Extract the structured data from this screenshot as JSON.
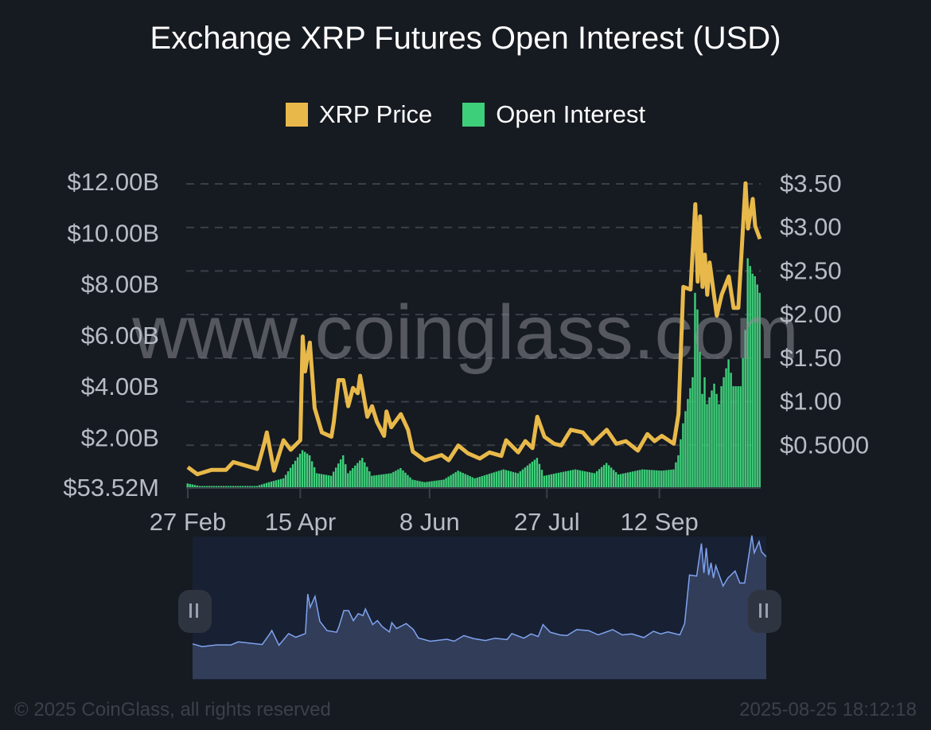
{
  "chart_data": {
    "type": "bar+line",
    "title": "Exchange XRP Futures Open Interest (USD)",
    "legend_position": "top",
    "grid": "dashed horizontal",
    "colors": {
      "price": "#e8b94a",
      "open_interest": "#3ecf7a",
      "navigator_line": "#7fa3f0",
      "background": "#161a21"
    },
    "x_ticks": [
      "27 Feb",
      "15 Apr",
      "8 Jun",
      "27 Jul",
      "12 Sep"
    ],
    "x_range": [
      "27 Feb",
      "24 Oct"
    ],
    "left_axis": {
      "label": "",
      "ticks": [
        "$12.00B",
        "$10.00B",
        "$8.00B",
        "$6.00B",
        "$4.00B",
        "$2.00B",
        "$53.52M"
      ],
      "range_usd_billions": [
        0.05352,
        12
      ]
    },
    "right_axis": {
      "label": "",
      "ticks": [
        "$3.50",
        "$3.00",
        "$2.50",
        "$2.00",
        "$1.50",
        "$1.00",
        "$0.5000"
      ],
      "range_usd": [
        0,
        3.5
      ]
    },
    "series": [
      {
        "name": "XRP Price",
        "type": "line",
        "axis": "right",
        "unit": "USD",
        "points": [
          [
            "27 Feb",
            0.22
          ],
          [
            "3 Mar",
            0.14
          ],
          [
            "9 Mar",
            0.19
          ],
          [
            "15 Mar",
            0.19
          ],
          [
            "18 Mar",
            0.28
          ],
          [
            "28 Mar",
            0.2
          ],
          [
            "31 Mar",
            0.5
          ],
          [
            "1 Apr",
            0.62
          ],
          [
            "4 Apr",
            0.18
          ],
          [
            "8 Apr",
            0.53
          ],
          [
            "11 Apr",
            0.42
          ],
          [
            "15 Apr",
            0.53
          ],
          [
            "16 Apr",
            1.72
          ],
          [
            "17 Apr",
            1.32
          ],
          [
            "19 Apr",
            1.65
          ],
          [
            "21 Apr",
            0.9
          ],
          [
            "24 Apr",
            0.62
          ],
          [
            "28 Apr",
            0.57
          ],
          [
            "29 Apr",
            0.74
          ],
          [
            "1 May",
            1.22
          ],
          [
            "3 May",
            1.22
          ],
          [
            "5 May",
            0.92
          ],
          [
            "7 May",
            1.13
          ],
          [
            "9 May",
            1.07
          ],
          [
            "10 May",
            1.27
          ],
          [
            "13 May",
            0.8
          ],
          [
            "15 May",
            0.92
          ],
          [
            "17 May",
            0.74
          ],
          [
            "20 May",
            0.58
          ],
          [
            "21 May",
            0.86
          ],
          [
            "23 May",
            0.68
          ],
          [
            "27 May",
            0.83
          ],
          [
            "30 May",
            0.65
          ],
          [
            "1 Jun",
            0.4
          ],
          [
            "6 Jun",
            0.3
          ],
          [
            "13 Jun",
            0.36
          ],
          [
            "16 Jun",
            0.3
          ],
          [
            "20 Jun",
            0.47
          ],
          [
            "24 Jun",
            0.38
          ],
          [
            "29 Jun",
            0.32
          ],
          [
            "3 Jul",
            0.39
          ],
          [
            "8 Jul",
            0.35
          ],
          [
            "10 Jul",
            0.53
          ],
          [
            "15 Jul",
            0.39
          ],
          [
            "18 Jul",
            0.52
          ],
          [
            "21 Jul",
            0.44
          ],
          [
            "23 Jul",
            0.8
          ],
          [
            "26 Jul",
            0.57
          ],
          [
            "30 Jul",
            0.49
          ],
          [
            "2 Aug",
            0.47
          ],
          [
            "6 Aug",
            0.65
          ],
          [
            "11 Aug",
            0.62
          ],
          [
            "15 Aug",
            0.49
          ],
          [
            "21 Aug",
            0.65
          ],
          [
            "25 Aug",
            0.49
          ],
          [
            "29 Aug",
            0.52
          ],
          [
            "3 Sep",
            0.41
          ],
          [
            "7 Sep",
            0.6
          ],
          [
            "10 Sep",
            0.52
          ],
          [
            "13 Sep",
            0.58
          ],
          [
            "18 Sep",
            0.49
          ],
          [
            "20 Sep",
            0.83
          ],
          [
            "22 Sep",
            2.29
          ],
          [
            "25 Sep",
            2.26
          ],
          [
            "27 Sep",
            3.24
          ],
          [
            "28 Sep",
            2.35
          ],
          [
            "29 Sep",
            3.1
          ],
          [
            "30 Sep",
            2.29
          ],
          [
            "1 Oct",
            2.66
          ],
          [
            "2 Oct",
            2.2
          ],
          [
            "3 Oct",
            2.57
          ],
          [
            "6 Oct",
            1.96
          ],
          [
            "8 Oct",
            2.2
          ],
          [
            "11 Oct",
            2.41
          ],
          [
            "13 Oct",
            2.05
          ],
          [
            "15 Oct",
            2.05
          ],
          [
            "18 Oct",
            3.48
          ],
          [
            "19 Oct",
            2.96
          ],
          [
            "21 Oct",
            3.3
          ],
          [
            "22 Oct",
            2.99
          ],
          [
            "24 Oct",
            2.84
          ]
        ]
      },
      {
        "name": "Open Interest",
        "type": "bar",
        "axis": "left",
        "unit": "USD billions",
        "points": [
          [
            "27 Feb",
            0.2
          ],
          [
            "4 Mar",
            0.1
          ],
          [
            "28 Mar",
            0.1
          ],
          [
            "2 Apr",
            0.25
          ],
          [
            "8 Apr",
            0.4
          ],
          [
            "16 Apr",
            1.5
          ],
          [
            "19 Apr",
            1.3
          ],
          [
            "22 Apr",
            0.6
          ],
          [
            "28 Apr",
            0.5
          ],
          [
            "3 May",
            1.3
          ],
          [
            "5 May",
            0.6
          ],
          [
            "9 May",
            1.0
          ],
          [
            "11 May",
            1.2
          ],
          [
            "15 May",
            0.5
          ],
          [
            "23 May",
            0.6
          ],
          [
            "27 May",
            0.8
          ],
          [
            "1 Jun",
            0.35
          ],
          [
            "6 Jun",
            0.25
          ],
          [
            "14 Jun",
            0.35
          ],
          [
            "20 Jun",
            0.7
          ],
          [
            "27 Jun",
            0.4
          ],
          [
            "9 Jul",
            0.75
          ],
          [
            "15 Jul",
            0.6
          ],
          [
            "23 Jul",
            1.2
          ],
          [
            "26 Jul",
            0.5
          ],
          [
            "31 Jul",
            0.6
          ],
          [
            "8 Aug",
            0.75
          ],
          [
            "16 Aug",
            0.6
          ],
          [
            "21 Aug",
            1.0
          ],
          [
            "26 Aug",
            0.55
          ],
          [
            "5 Sep",
            0.75
          ],
          [
            "13 Sep",
            0.7
          ],
          [
            "18 Sep",
            0.75
          ],
          [
            "20 Sep",
            1.3
          ],
          [
            "22 Sep",
            2.55
          ],
          [
            "24 Sep",
            3.5
          ],
          [
            "26 Sep",
            4.35
          ],
          [
            "27 Sep",
            7.65
          ],
          [
            "28 Sep",
            7.0
          ],
          [
            "30 Sep",
            3.7
          ],
          [
            "1 Oct",
            4.35
          ],
          [
            "2 Oct",
            3.3
          ],
          [
            "5 Oct",
            4.1
          ],
          [
            "7 Oct",
            3.3
          ],
          [
            "8 Oct",
            4.0
          ],
          [
            "11 Oct",
            5.05
          ],
          [
            "13 Oct",
            4.0
          ],
          [
            "16 Oct",
            4.0
          ],
          [
            "18 Oct",
            6.2
          ],
          [
            "19 Oct",
            9.0
          ],
          [
            "21 Oct",
            8.4
          ],
          [
            "22 Oct",
            8.3
          ],
          [
            "24 Oct",
            7.65
          ]
        ]
      }
    ]
  },
  "watermark": "www.coinglass.com",
  "footer": {
    "copyright": "© 2025 CoinGlass, all rights reserved",
    "timestamp": "2025-08-25 18:12:18"
  },
  "navigator": {
    "left_handle_icon": "pause-bars-icon",
    "right_handle_icon": "pause-bars-icon"
  }
}
